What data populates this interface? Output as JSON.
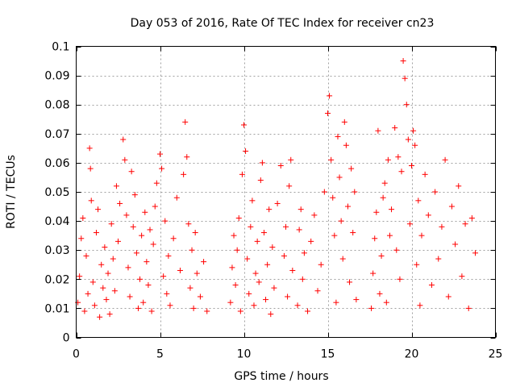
{
  "chart_data": {
    "type": "scatter",
    "title": "Day 053 of 2016, Rate Of TEC Index for receiver cn23",
    "xlabel": "GPS time / hours",
    "ylabel": "ROTI / TECUs",
    "xlim": [
      0,
      25
    ],
    "ylim": [
      0,
      0.1
    ],
    "x_ticks": [
      0,
      5,
      10,
      15,
      20,
      25
    ],
    "x_tick_labels": [
      "0",
      "5",
      "10",
      "15",
      "20",
      "25"
    ],
    "y_ticks": [
      0,
      0.01,
      0.02,
      0.03,
      0.04,
      0.05,
      0.06,
      0.07,
      0.08,
      0.09,
      0.1
    ],
    "y_tick_labels": [
      "0",
      "0.01",
      "0.02",
      "0.03",
      "0.04",
      "0.05",
      "0.06",
      "0.07",
      "0.08",
      "0.09",
      "0.1"
    ],
    "grid": true,
    "marker": "plus",
    "color": "#ff0000",
    "series": [
      {
        "name": "ROTI",
        "points": [
          [
            0.1,
            0.012
          ],
          [
            0.2,
            0.021
          ],
          [
            0.3,
            0.034
          ],
          [
            0.4,
            0.041
          ],
          [
            0.5,
            0.009
          ],
          [
            0.6,
            0.028
          ],
          [
            0.7,
            0.015
          ],
          [
            0.8,
            0.065
          ],
          [
            0.85,
            0.058
          ],
          [
            0.9,
            0.047
          ],
          [
            1.0,
            0.019
          ],
          [
            1.1,
            0.011
          ],
          [
            1.2,
            0.036
          ],
          [
            1.3,
            0.044
          ],
          [
            1.4,
            0.007
          ],
          [
            1.5,
            0.025
          ],
          [
            1.6,
            0.017
          ],
          [
            1.7,
            0.031
          ],
          [
            1.8,
            0.013
          ],
          [
            1.9,
            0.022
          ],
          [
            2.0,
            0.008
          ],
          [
            2.1,
            0.039
          ],
          [
            2.2,
            0.027
          ],
          [
            2.3,
            0.016
          ],
          [
            2.4,
            0.052
          ],
          [
            2.5,
            0.033
          ],
          [
            2.6,
            0.046
          ],
          [
            2.8,
            0.068
          ],
          [
            2.9,
            0.061
          ],
          [
            3.0,
            0.042
          ],
          [
            3.1,
            0.024
          ],
          [
            3.2,
            0.014
          ],
          [
            3.3,
            0.057
          ],
          [
            3.4,
            0.038
          ],
          [
            3.5,
            0.049
          ],
          [
            3.6,
            0.029
          ],
          [
            3.7,
            0.01
          ],
          [
            3.8,
            0.02
          ],
          [
            3.9,
            0.035
          ],
          [
            4.0,
            0.012
          ],
          [
            4.1,
            0.043
          ],
          [
            4.2,
            0.026
          ],
          [
            4.3,
            0.018
          ],
          [
            4.4,
            0.037
          ],
          [
            4.5,
            0.009
          ],
          [
            4.6,
            0.032
          ],
          [
            4.7,
            0.045
          ],
          [
            4.8,
            0.053
          ],
          [
            5.0,
            0.063
          ],
          [
            5.1,
            0.058
          ],
          [
            5.2,
            0.021
          ],
          [
            5.3,
            0.04
          ],
          [
            5.4,
            0.015
          ],
          [
            5.5,
            0.028
          ],
          [
            5.6,
            0.011
          ],
          [
            5.8,
            0.034
          ],
          [
            6.0,
            0.048
          ],
          [
            6.2,
            0.023
          ],
          [
            6.4,
            0.056
          ],
          [
            6.5,
            0.074
          ],
          [
            6.6,
            0.062
          ],
          [
            6.7,
            0.039
          ],
          [
            6.8,
            0.017
          ],
          [
            6.9,
            0.03
          ],
          [
            7.0,
            0.01
          ],
          [
            7.1,
            0.036
          ],
          [
            7.2,
            0.022
          ],
          [
            7.4,
            0.014
          ],
          [
            7.6,
            0.026
          ],
          [
            7.8,
            0.009
          ],
          [
            9.2,
            0.012
          ],
          [
            9.3,
            0.024
          ],
          [
            9.4,
            0.035
          ],
          [
            9.5,
            0.018
          ],
          [
            9.6,
            0.03
          ],
          [
            9.7,
            0.041
          ],
          [
            9.8,
            0.009
          ],
          [
            9.9,
            0.056
          ],
          [
            10.0,
            0.073
          ],
          [
            10.1,
            0.064
          ],
          [
            10.2,
            0.027
          ],
          [
            10.3,
            0.015
          ],
          [
            10.4,
            0.038
          ],
          [
            10.5,
            0.047
          ],
          [
            10.6,
            0.011
          ],
          [
            10.7,
            0.022
          ],
          [
            10.8,
            0.033
          ],
          [
            10.9,
            0.019
          ],
          [
            11.0,
            0.054
          ],
          [
            11.1,
            0.06
          ],
          [
            11.2,
            0.036
          ],
          [
            11.3,
            0.013
          ],
          [
            11.4,
            0.025
          ],
          [
            11.5,
            0.044
          ],
          [
            11.6,
            0.008
          ],
          [
            11.7,
            0.031
          ],
          [
            11.8,
            0.017
          ],
          [
            12.0,
            0.046
          ],
          [
            12.2,
            0.059
          ],
          [
            12.4,
            0.028
          ],
          [
            12.5,
            0.038
          ],
          [
            12.6,
            0.014
          ],
          [
            12.7,
            0.052
          ],
          [
            12.8,
            0.061
          ],
          [
            12.9,
            0.023
          ],
          [
            13.2,
            0.011
          ],
          [
            13.3,
            0.037
          ],
          [
            13.4,
            0.044
          ],
          [
            13.5,
            0.02
          ],
          [
            13.6,
            0.029
          ],
          [
            13.8,
            0.009
          ],
          [
            14.0,
            0.033
          ],
          [
            14.2,
            0.042
          ],
          [
            14.4,
            0.016
          ],
          [
            14.6,
            0.025
          ],
          [
            14.8,
            0.05
          ],
          [
            15.0,
            0.077
          ],
          [
            15.1,
            0.083
          ],
          [
            15.2,
            0.061
          ],
          [
            15.3,
            0.048
          ],
          [
            15.4,
            0.035
          ],
          [
            15.5,
            0.012
          ],
          [
            15.6,
            0.069
          ],
          [
            15.7,
            0.055
          ],
          [
            15.8,
            0.04
          ],
          [
            15.9,
            0.027
          ],
          [
            16.0,
            0.074
          ],
          [
            16.1,
            0.066
          ],
          [
            16.2,
            0.045
          ],
          [
            16.3,
            0.019
          ],
          [
            16.4,
            0.058
          ],
          [
            16.5,
            0.036
          ],
          [
            16.6,
            0.05
          ],
          [
            16.7,
            0.013
          ],
          [
            17.6,
            0.01
          ],
          [
            17.7,
            0.022
          ],
          [
            17.8,
            0.034
          ],
          [
            17.9,
            0.043
          ],
          [
            18.0,
            0.071
          ],
          [
            18.1,
            0.015
          ],
          [
            18.2,
            0.028
          ],
          [
            18.3,
            0.048
          ],
          [
            18.4,
            0.053
          ],
          [
            18.5,
            0.012
          ],
          [
            18.6,
            0.061
          ],
          [
            18.7,
            0.035
          ],
          [
            18.8,
            0.044
          ],
          [
            19.0,
            0.072
          ],
          [
            19.1,
            0.03
          ],
          [
            19.2,
            0.062
          ],
          [
            19.3,
            0.02
          ],
          [
            19.4,
            0.057
          ],
          [
            19.5,
            0.095
          ],
          [
            19.6,
            0.089
          ],
          [
            19.7,
            0.08
          ],
          [
            19.8,
            0.068
          ],
          [
            19.9,
            0.039
          ],
          [
            20.0,
            0.059
          ],
          [
            20.1,
            0.071
          ],
          [
            20.2,
            0.066
          ],
          [
            20.3,
            0.025
          ],
          [
            20.4,
            0.047
          ],
          [
            20.5,
            0.011
          ],
          [
            20.6,
            0.035
          ],
          [
            20.8,
            0.056
          ],
          [
            21.0,
            0.042
          ],
          [
            21.2,
            0.018
          ],
          [
            21.4,
            0.05
          ],
          [
            21.6,
            0.027
          ],
          [
            21.8,
            0.038
          ],
          [
            22.0,
            0.061
          ],
          [
            22.2,
            0.014
          ],
          [
            22.4,
            0.045
          ],
          [
            22.6,
            0.032
          ],
          [
            22.8,
            0.052
          ],
          [
            23.0,
            0.021
          ],
          [
            23.2,
            0.039
          ],
          [
            23.4,
            0.01
          ],
          [
            23.6,
            0.041
          ],
          [
            23.8,
            0.029
          ]
        ]
      }
    ]
  }
}
